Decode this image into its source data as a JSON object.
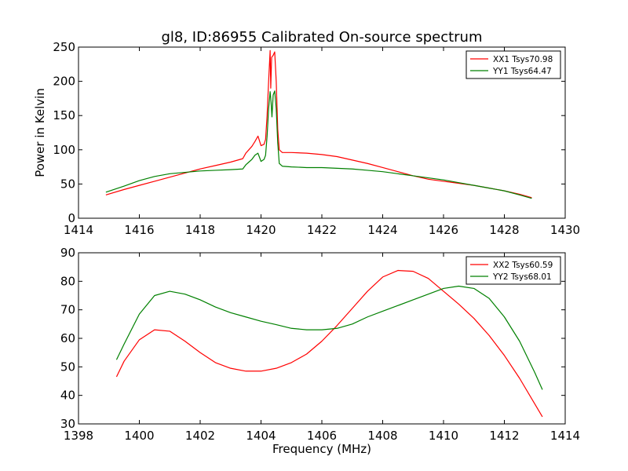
{
  "chart_data": [
    {
      "type": "line",
      "title": "gl8, ID:86955 Calibrated On-source spectrum",
      "xlabel": "",
      "ylabel": "Power in Kelvin",
      "xlim": [
        1414,
        1430
      ],
      "ylim": [
        0,
        250
      ],
      "xticks": [
        1414,
        1416,
        1418,
        1420,
        1422,
        1424,
        1426,
        1428,
        1430
      ],
      "yticks": [
        0,
        50,
        100,
        150,
        200,
        250
      ],
      "grid": false,
      "legend_position": "top-right",
      "series": [
        {
          "name": "XX1 Tsys70.98",
          "color": "#ff0000",
          "x": [
            1414.9,
            1415.5,
            1416.0,
            1416.5,
            1417.0,
            1417.5,
            1418.0,
            1418.5,
            1419.0,
            1419.4,
            1419.5,
            1419.6,
            1419.7,
            1419.8,
            1419.9,
            1420.0,
            1420.1,
            1420.15,
            1420.2,
            1420.25,
            1420.3,
            1420.32,
            1420.35,
            1420.4,
            1420.45,
            1420.5,
            1420.55,
            1420.6,
            1420.7,
            1421.0,
            1421.5,
            1422.0,
            1422.5,
            1423.0,
            1423.5,
            1424.0,
            1424.5,
            1425.0,
            1425.5,
            1426.0,
            1426.5,
            1427.0,
            1427.5,
            1428.0,
            1428.5,
            1428.9
          ],
          "y": [
            34,
            42,
            48,
            54,
            60,
            66,
            72,
            77,
            82,
            87,
            95,
            100,
            105,
            112,
            120,
            106,
            108,
            115,
            150,
            200,
            245,
            190,
            235,
            238,
            243,
            200,
            130,
            100,
            96,
            96,
            95,
            93,
            90,
            85,
            80,
            74,
            68,
            62,
            57,
            54,
            51,
            48,
            44,
            40,
            35,
            30
          ]
        },
        {
          "name": "YY1 Tsys64.47",
          "color": "#008000",
          "x": [
            1414.9,
            1415.5,
            1416.0,
            1416.5,
            1417.0,
            1417.5,
            1418.0,
            1418.5,
            1419.0,
            1419.4,
            1419.5,
            1419.6,
            1419.7,
            1419.8,
            1419.9,
            1420.0,
            1420.1,
            1420.15,
            1420.2,
            1420.25,
            1420.3,
            1420.33,
            1420.36,
            1420.4,
            1420.45,
            1420.5,
            1420.55,
            1420.6,
            1420.7,
            1421.0,
            1421.5,
            1422.0,
            1422.5,
            1423.0,
            1423.5,
            1424.0,
            1424.5,
            1425.0,
            1425.5,
            1426.0,
            1426.5,
            1427.0,
            1427.5,
            1428.0,
            1428.5,
            1428.9
          ],
          "y": [
            38,
            47,
            55,
            61,
            65,
            67,
            69,
            70,
            71,
            72,
            78,
            82,
            86,
            92,
            95,
            83,
            86,
            92,
            120,
            160,
            185,
            170,
            148,
            180,
            186,
            160,
            110,
            80,
            76,
            75,
            74,
            74,
            73,
            72,
            70,
            68,
            65,
            62,
            59,
            56,
            52,
            48,
            44,
            40,
            34,
            29
          ]
        }
      ]
    },
    {
      "type": "line",
      "title": "",
      "xlabel": "Frequency (MHz)",
      "ylabel": "",
      "xlim": [
        1398,
        1414
      ],
      "ylim": [
        30,
        90
      ],
      "xticks": [
        1398,
        1400,
        1402,
        1404,
        1406,
        1408,
        1410,
        1412,
        1414
      ],
      "yticks": [
        30,
        40,
        50,
        60,
        70,
        80,
        90
      ],
      "grid": false,
      "legend_position": "top-right",
      "series": [
        {
          "name": "XX2 Tsys60.59",
          "color": "#ff0000",
          "x": [
            1399.25,
            1399.5,
            1400.0,
            1400.5,
            1401.0,
            1401.5,
            1402.0,
            1402.5,
            1403.0,
            1403.5,
            1404.0,
            1404.5,
            1405.0,
            1405.5,
            1406.0,
            1406.5,
            1407.0,
            1407.5,
            1408.0,
            1408.5,
            1409.0,
            1409.5,
            1410.0,
            1410.5,
            1411.0,
            1411.5,
            1412.0,
            1412.5,
            1413.0,
            1413.25
          ],
          "y": [
            46.5,
            52,
            59.5,
            63,
            62.5,
            59,
            55,
            51.5,
            49.5,
            48.5,
            48.5,
            49.5,
            51.5,
            54.5,
            59,
            64.5,
            70.5,
            76.5,
            81.5,
            83.8,
            83.5,
            81,
            76.5,
            72,
            67,
            61,
            54,
            46,
            37,
            32.5
          ]
        },
        {
          "name": "YY2 Tsys68.01",
          "color": "#008000",
          "x": [
            1399.25,
            1399.5,
            1400.0,
            1400.5,
            1401.0,
            1401.5,
            1402.0,
            1402.5,
            1403.0,
            1403.5,
            1404.0,
            1404.5,
            1405.0,
            1405.5,
            1406.0,
            1406.5,
            1407.0,
            1407.5,
            1408.0,
            1408.5,
            1409.0,
            1409.5,
            1410.0,
            1410.5,
            1411.0,
            1411.5,
            1412.0,
            1412.5,
            1413.0,
            1413.25
          ],
          "y": [
            52.5,
            58,
            68.5,
            75,
            76.5,
            75.5,
            73.5,
            71,
            69,
            67.5,
            66,
            64.8,
            63.5,
            63,
            63,
            63.5,
            65,
            67.5,
            69.5,
            71.5,
            73.5,
            75.5,
            77.5,
            78.3,
            77.5,
            74,
            67.5,
            59,
            48,
            42
          ]
        }
      ]
    }
  ]
}
